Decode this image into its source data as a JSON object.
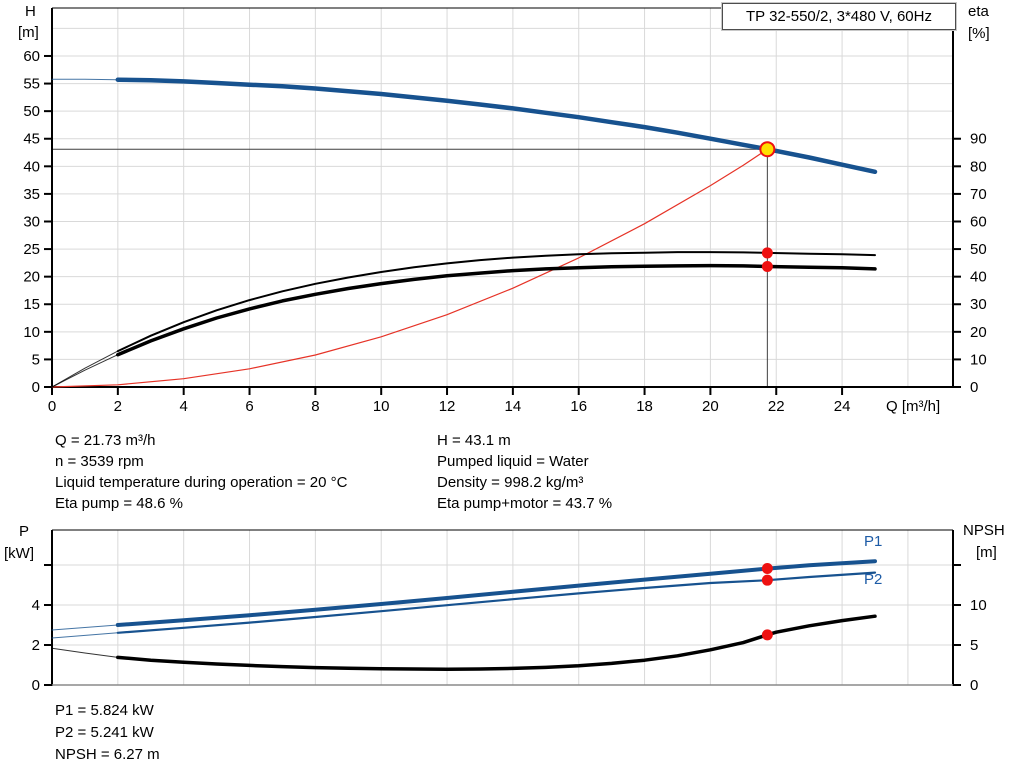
{
  "title_box": "TP 32-550/2, 3*480 V, 60Hz",
  "info_left": [
    "Q = 21.73 m³/h",
    "n = 3539 rpm",
    "Liquid temperature during operation = 20 °C",
    "Eta pump = 48.6 %"
  ],
  "info_right": [
    "H = 43.1 m",
    "Pumped liquid = Water",
    "Density = 998.2 kg/m³",
    "Eta pump+motor = 43.7 %"
  ],
  "info_bottom": [
    "P1 = 5.824 kW",
    "P2 = 5.241 kW",
    "NPSH = 6.27 m"
  ],
  "colors": {
    "curve_blue": "#17528f",
    "label_blue": "#1d5ba6",
    "curve_black": "#000000",
    "curve_red": "#e63327",
    "marker_red": "#ee1111",
    "marker_yellow": "#ffdf00",
    "grid": "#d9d9d9",
    "axis": "#000000",
    "duty_line": "#3f3f3f",
    "bottom_axis_gray": "#8a8a8a"
  },
  "chart_data": [
    {
      "name": "qh",
      "type": "line",
      "x_axis": {
        "label": "Q [m³/h]",
        "ticks": [
          0,
          2,
          4,
          6,
          8,
          10,
          12,
          14,
          16,
          18,
          20,
          22,
          24
        ],
        "min": 0,
        "max": 27.4
      },
      "y_left": {
        "label": "H",
        "unit": "[m]",
        "ticks": [
          0,
          5,
          10,
          15,
          20,
          25,
          30,
          35,
          40,
          45,
          50,
          55,
          60
        ],
        "min": 0,
        "max": 68.7,
        "extra_tick_marks": []
      },
      "y_right": {
        "label": "eta",
        "unit": "[%]",
        "ticks": [
          0,
          10,
          20,
          30,
          40,
          50,
          60,
          70,
          80,
          90
        ],
        "min": 0,
        "max": 137.4,
        "extra_tick_marks": []
      },
      "duty_point": {
        "q": 21.73,
        "h": 43.1
      },
      "marker_points": [
        {
          "name": "eta-pump-point",
          "q": 21.73,
          "v": 48.6,
          "axis": "right"
        },
        {
          "name": "eta-pump-motor-point",
          "q": 21.73,
          "v": 43.7,
          "axis": "right"
        }
      ],
      "series": [
        {
          "name": "system-curve",
          "axis": "left",
          "color": "curve_red",
          "width": 1.2,
          "points": [
            [
              0,
              0
            ],
            [
              2,
              0.4
            ],
            [
              4,
              1.5
            ],
            [
              6,
              3.3
            ],
            [
              8,
              5.8
            ],
            [
              10,
              9.1
            ],
            [
              12,
              13.1
            ],
            [
              14,
              17.9
            ],
            [
              16,
              23.4
            ],
            [
              18,
              29.6
            ],
            [
              20,
              36.5
            ],
            [
              21,
              40.2
            ],
            [
              21.73,
              43.1
            ]
          ]
        },
        {
          "name": "eta-pump-curve",
          "axis": "right",
          "color": "curve_black",
          "width": 2,
          "thin_until": 2,
          "points": [
            [
              0,
              0
            ],
            [
              1,
              6.8
            ],
            [
              2,
              13.0
            ],
            [
              3,
              18.6
            ],
            [
              4,
              23.5
            ],
            [
              5,
              27.8
            ],
            [
              6,
              31.5
            ],
            [
              7,
              34.7
            ],
            [
              8,
              37.4
            ],
            [
              9,
              39.7
            ],
            [
              10,
              41.7
            ],
            [
              11,
              43.4
            ],
            [
              12,
              44.8
            ],
            [
              13,
              46.0
            ],
            [
              14,
              46.9
            ],
            [
              15,
              47.6
            ],
            [
              16,
              48.1
            ],
            [
              17,
              48.5
            ],
            [
              18,
              48.7
            ],
            [
              19,
              48.9
            ],
            [
              20,
              48.9
            ],
            [
              21,
              48.8
            ],
            [
              21.73,
              48.6
            ],
            [
              23,
              48.3
            ],
            [
              24,
              48.1
            ],
            [
              25,
              47.8
            ]
          ]
        },
        {
          "name": "eta-pump-motor-curve",
          "axis": "right",
          "color": "curve_black",
          "width": 3.5,
          "thin_until": 2,
          "points": [
            [
              0,
              0
            ],
            [
              1,
              6.1
            ],
            [
              2,
              11.7
            ],
            [
              3,
              16.7
            ],
            [
              4,
              21.1
            ],
            [
              5,
              25.0
            ],
            [
              6,
              28.3
            ],
            [
              7,
              31.2
            ],
            [
              8,
              33.6
            ],
            [
              9,
              35.7
            ],
            [
              10,
              37.5
            ],
            [
              11,
              39.0
            ],
            [
              12,
              40.3
            ],
            [
              13,
              41.3
            ],
            [
              14,
              42.2
            ],
            [
              15,
              42.8
            ],
            [
              16,
              43.2
            ],
            [
              17,
              43.6
            ],
            [
              18,
              43.8
            ],
            [
              19,
              43.9
            ],
            [
              20,
              44.0
            ],
            [
              21,
              43.9
            ],
            [
              21.73,
              43.7
            ],
            [
              23,
              43.4
            ],
            [
              24,
              43.2
            ],
            [
              25,
              42.8
            ]
          ]
        },
        {
          "name": "qh-curve",
          "axis": "left",
          "color": "curve_blue",
          "width": 4.5,
          "thin_until": 2,
          "points": [
            [
              0,
              55.8
            ],
            [
              1,
              55.8
            ],
            [
              2,
              55.7
            ],
            [
              3,
              55.6
            ],
            [
              4,
              55.4
            ],
            [
              5,
              55.1
            ],
            [
              6,
              54.8
            ],
            [
              7,
              54.5
            ],
            [
              8,
              54.1
            ],
            [
              9,
              53.6
            ],
            [
              10,
              53.1
            ],
            [
              11,
              52.5
            ],
            [
              12,
              51.9
            ],
            [
              13,
              51.2
            ],
            [
              14,
              50.5
            ],
            [
              15,
              49.7
            ],
            [
              16,
              48.9
            ],
            [
              17,
              48.0
            ],
            [
              18,
              47.1
            ],
            [
              19,
              46.1
            ],
            [
              20,
              45.0
            ],
            [
              21,
              43.9
            ],
            [
              21.73,
              43.1
            ],
            [
              23,
              41.6
            ],
            [
              24,
              40.3
            ],
            [
              25,
              39.0
            ]
          ]
        }
      ]
    },
    {
      "name": "power",
      "type": "line",
      "x_axis": {
        "label": "",
        "ticks": [],
        "min": 0,
        "max": 27.4
      },
      "y_left": {
        "label": "P",
        "unit": "[kW]",
        "ticks": [
          0,
          2,
          4
        ],
        "min": 0,
        "max": 7.75,
        "extra_tick_marks": [
          6
        ]
      },
      "y_right": {
        "label": "NPSH",
        "unit": "[m]",
        "ticks": [
          0,
          5,
          10
        ],
        "min": 0,
        "max": 19.4,
        "extra_tick_marks": [
          15
        ]
      },
      "series_labels": {
        "p1": "P1",
        "p2": "P2"
      },
      "marker_points": [
        {
          "name": "p1-point",
          "q": 21.73,
          "v": 5.824,
          "axis": "left"
        },
        {
          "name": "p2-point",
          "q": 21.73,
          "v": 5.241,
          "axis": "left"
        },
        {
          "name": "npsh-point",
          "q": 21.73,
          "v": 6.27,
          "axis": "right"
        }
      ],
      "series": [
        {
          "name": "npsh-curve",
          "axis": "right",
          "color": "curve_black",
          "width": 3.5,
          "thin_until": 2,
          "points": [
            [
              0,
              4.6
            ],
            [
              1,
              4.0
            ],
            [
              2,
              3.45
            ],
            [
              3,
              3.1
            ],
            [
              4,
              2.85
            ],
            [
              5,
              2.63
            ],
            [
              6,
              2.45
            ],
            [
              7,
              2.3
            ],
            [
              8,
              2.18
            ],
            [
              9,
              2.1
            ],
            [
              10,
              2.04
            ],
            [
              11,
              2.0
            ],
            [
              12,
              1.98
            ],
            [
              13,
              2.0
            ],
            [
              14,
              2.08
            ],
            [
              15,
              2.2
            ],
            [
              16,
              2.4
            ],
            [
              17,
              2.7
            ],
            [
              18,
              3.1
            ],
            [
              19,
              3.65
            ],
            [
              20,
              4.4
            ],
            [
              21,
              5.3
            ],
            [
              21.73,
              6.27
            ],
            [
              22,
              6.6
            ],
            [
              23,
              7.4
            ],
            [
              24,
              8.05
            ],
            [
              25,
              8.6
            ]
          ]
        },
        {
          "name": "p2-curve",
          "axis": "left",
          "color": "curve_blue",
          "width": 2.2,
          "thin_until": 2,
          "points": [
            [
              0,
              2.35
            ],
            [
              2,
              2.61
            ],
            [
              4,
              2.86
            ],
            [
              6,
              3.12
            ],
            [
              8,
              3.4
            ],
            [
              10,
              3.69
            ],
            [
              12,
              3.99
            ],
            [
              14,
              4.29
            ],
            [
              16,
              4.58
            ],
            [
              18,
              4.85
            ],
            [
              20,
              5.1
            ],
            [
              21.73,
              5.24
            ],
            [
              23,
              5.4
            ],
            [
              25,
              5.62
            ]
          ]
        },
        {
          "name": "p1-curve",
          "axis": "left",
          "color": "curve_blue",
          "width": 4,
          "thin_until": 2,
          "points": [
            [
              0,
              2.75
            ],
            [
              2,
              3.0
            ],
            [
              4,
              3.24
            ],
            [
              6,
              3.49
            ],
            [
              8,
              3.76
            ],
            [
              10,
              4.05
            ],
            [
              12,
              4.35
            ],
            [
              14,
              4.66
            ],
            [
              16,
              4.97
            ],
            [
              18,
              5.27
            ],
            [
              20,
              5.56
            ],
            [
              21.73,
              5.82
            ],
            [
              23,
              5.99
            ],
            [
              25,
              6.19
            ]
          ]
        }
      ]
    }
  ]
}
